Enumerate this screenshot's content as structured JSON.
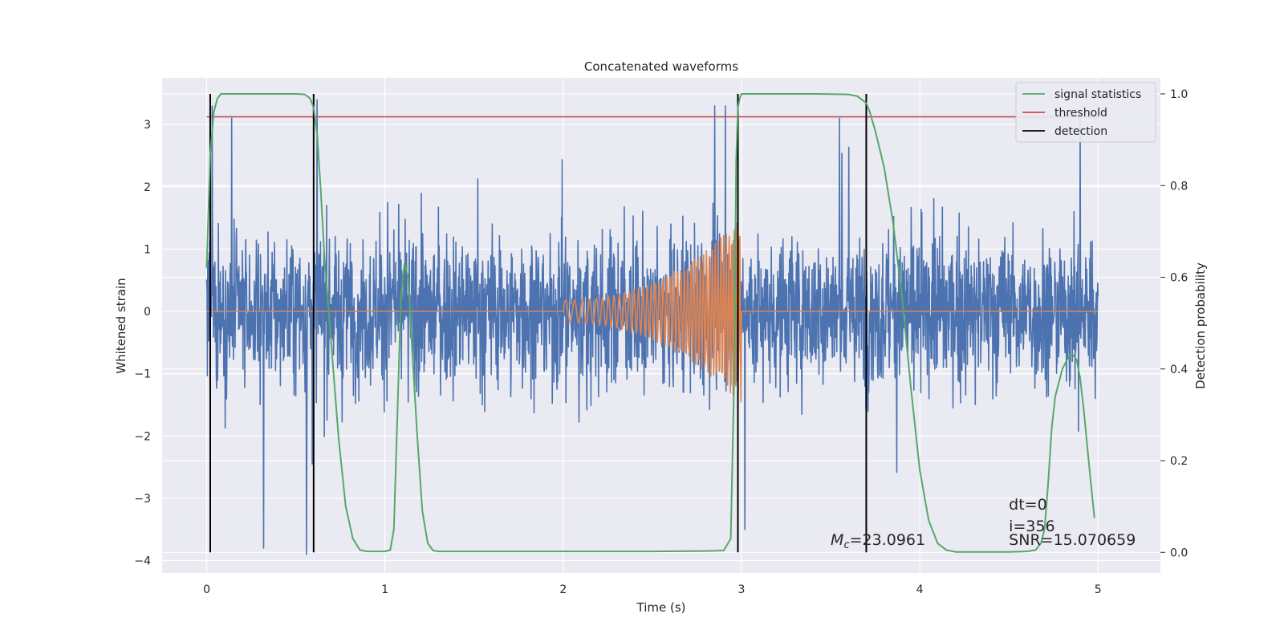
{
  "chart_data": {
    "type": "line",
    "title": "Concatenated waveforms",
    "xlabel": "Time (s)",
    "ylabel_left": "Whitened strain",
    "ylabel_right": "Detection probability",
    "xlim": [
      -0.25,
      5.35
    ],
    "ylim_left": [
      -4.2,
      3.75
    ],
    "ylim_right": [
      -0.045,
      1.035
    ],
    "x_ticks": [
      0,
      1,
      2,
      3,
      4,
      5
    ],
    "x_tick_labels": [
      "0",
      "1",
      "2",
      "3",
      "4",
      "5"
    ],
    "y_left_ticks": [
      -4,
      -3,
      -2,
      -1,
      0,
      1,
      2,
      3
    ],
    "y_left_tick_labels": [
      "−4",
      "−3",
      "−2",
      "−1",
      "0",
      "1",
      "2",
      "3"
    ],
    "y_right_ticks": [
      0,
      0.2,
      0.4,
      0.6,
      0.8,
      1.0
    ],
    "y_right_tick_labels": [
      "0.0",
      "0.2",
      "0.4",
      "0.6",
      "0.8",
      "1.0"
    ],
    "grid": true,
    "legend_position": "top-right",
    "colors": {
      "plot_bg": "#eaeaf2",
      "grid": "#ffffff",
      "strain": "#4c72b0",
      "template": "#dd8452",
      "signal": "#55a868",
      "threshold": "#c44e52",
      "detection": "#000000"
    },
    "noise": {
      "x_range": [
        0,
        5
      ],
      "typical_range": [
        -1.4,
        1.4
      ],
      "extreme_range": [
        -3.9,
        3.4
      ],
      "peak_spikes": [
        {
          "x": 0.03,
          "y": 3.3
        },
        {
          "x": 0.14,
          "y": 3.1
        },
        {
          "x": 0.32,
          "y": -3.8
        },
        {
          "x": 0.56,
          "y": -3.9
        },
        {
          "x": 0.62,
          "y": 3.4
        },
        {
          "x": 2.85,
          "y": 3.3
        },
        {
          "x": 2.91,
          "y": 3.3
        },
        {
          "x": 3.02,
          "y": -3.5
        },
        {
          "x": 3.55,
          "y": 3.1
        },
        {
          "x": 4.9,
          "y": 3.1
        }
      ]
    },
    "template": {
      "name": "",
      "start": 2.0,
      "end": 3.0,
      "f_start": 18,
      "f_end": 70,
      "amp_start": 0.18,
      "amp_end": 1.5
    },
    "series": [
      {
        "name": "signal statistics",
        "axis": "right",
        "x": [
          0,
          0.02,
          0.04,
          0.06,
          0.08,
          0.1,
          0.2,
          0.3,
          0.4,
          0.5,
          0.55,
          0.58,
          0.6,
          0.62,
          0.64,
          0.66,
          0.7,
          0.74,
          0.78,
          0.82,
          0.86,
          0.9,
          0.95,
          1.0,
          1.03,
          1.05,
          1.07,
          1.09,
          1.11,
          1.13,
          1.15,
          1.18,
          1.21,
          1.24,
          1.27,
          1.3,
          1.5,
          2.0,
          2.5,
          2.8,
          2.9,
          2.94,
          2.96,
          2.97,
          2.98,
          2.99,
          3.0,
          3.02,
          3.05,
          3.1,
          3.2,
          3.4,
          3.6,
          3.65,
          3.7,
          3.72,
          3.75,
          3.8,
          3.85,
          3.9,
          3.95,
          4.0,
          4.05,
          4.1,
          4.15,
          4.2,
          4.3,
          4.4,
          4.5,
          4.6,
          4.65,
          4.68,
          4.7,
          4.72,
          4.74,
          4.76,
          4.8,
          4.84,
          4.86,
          4.88,
          4.9,
          4.92,
          4.94,
          4.96,
          4.98
        ],
        "y": [
          0.62,
          0.87,
          0.96,
          0.99,
          1.0,
          1.0,
          1.0,
          1.0,
          1.0,
          1.0,
          0.999,
          0.99,
          0.97,
          0.91,
          0.79,
          0.65,
          0.45,
          0.25,
          0.1,
          0.03,
          0.005,
          0.002,
          0.002,
          0.002,
          0.005,
          0.05,
          0.3,
          0.56,
          0.63,
          0.6,
          0.46,
          0.26,
          0.09,
          0.02,
          0.004,
          0.002,
          0.002,
          0.002,
          0.002,
          0.003,
          0.004,
          0.03,
          0.4,
          0.85,
          0.97,
          0.99,
          1.0,
          1.0,
          1.0,
          1.0,
          1.0,
          1.0,
          0.999,
          0.995,
          0.98,
          0.96,
          0.92,
          0.84,
          0.72,
          0.56,
          0.36,
          0.18,
          0.07,
          0.02,
          0.005,
          0.001,
          0.001,
          0.001,
          0.001,
          0.002,
          0.005,
          0.02,
          0.05,
          0.15,
          0.27,
          0.34,
          0.4,
          0.43,
          0.43,
          0.42,
          0.38,
          0.31,
          0.23,
          0.15,
          0.075
        ]
      },
      {
        "name": "threshold",
        "axis": "right",
        "x": [
          0,
          5
        ],
        "y": [
          0.95,
          0.95
        ]
      },
      {
        "name": "detection",
        "axis": "right",
        "x_positions": [
          0.02,
          0.6,
          2.98,
          3.7
        ],
        "y_range": [
          0,
          1.0
        ]
      }
    ],
    "annotations": [
      {
        "text": "$M_c$=23.0961",
        "prefix": "M",
        "sub": "c",
        "value": "=23.0961",
        "x": 3.5,
        "y": -3.75
      },
      {
        "text": "dt=0",
        "x": 4.5,
        "y": -3.18
      },
      {
        "text": "i=356",
        "x": 4.5,
        "y": -3.53
      },
      {
        "text": "SNR=15.070659",
        "x": 4.5,
        "y": -3.75
      }
    ]
  }
}
